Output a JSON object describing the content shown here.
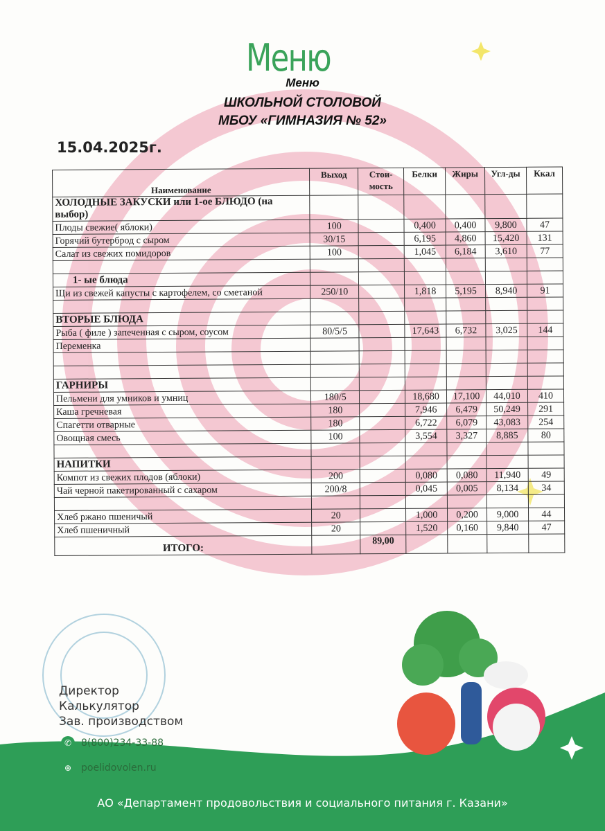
{
  "header": {
    "logo_text": "Меню",
    "title_line1": "Меню",
    "title_line2": "ШКОЛЬНОЙ СТОЛОВОЙ",
    "title_line3": "МБОУ «ГИМНАЗИЯ № 52»",
    "date": "15.04.2025г."
  },
  "table": {
    "columns": [
      "Наименование",
      "Выход",
      "Стои-мость",
      "Белки",
      "Жиры",
      "Угл-ды",
      "Ккал"
    ],
    "rows": [
      {
        "name": "ХОЛОДНЫЕ ЗАКУСКИ или 1-ое БЛЮДО (на выбор)",
        "section": true
      },
      {
        "name": "Плоды свежие( яблоки)",
        "out": "100",
        "cost": "",
        "b": "0,400",
        "f": "0,400",
        "c": "9,800",
        "k": "47"
      },
      {
        "name": "Горячий бутерброд с сыром",
        "out": "30/15",
        "cost": "",
        "b": "6,195",
        "f": "4,860",
        "c": "15,420",
        "k": "131"
      },
      {
        "name": "Салат из свежих помидоров",
        "out": "100",
        "cost": "",
        "b": "1,045",
        "f": "6,184",
        "c": "3,610",
        "k": "77"
      },
      {
        "name": ""
      },
      {
        "name": "1-   ые блюда",
        "section": true
      },
      {
        "name": "Щи из свежей капусты с картофелем,  со сметаной",
        "out": "250/10",
        "cost": "",
        "b": "1,818",
        "f": "5,195",
        "c": "8,940",
        "k": "91"
      },
      {
        "name": ""
      },
      {
        "name": "ВТОРЫЕ БЛЮДА",
        "section": true
      },
      {
        "name": "Рыба ( филе ) запеченная с сыром, соусом",
        "out": "80/5/5",
        "cost": "",
        "b": "17,643",
        "f": "6,732",
        "c": "3,025",
        "k": "144"
      },
      {
        "name": "Переменка"
      },
      {
        "name": ""
      },
      {
        "name": ""
      },
      {
        "name": "ГАРНИРЫ",
        "section": true
      },
      {
        "name": "Пельмени для умников и умниц",
        "out": "180/5",
        "cost": "",
        "b": "18,680",
        "f": "17,100",
        "c": "44,010",
        "k": "410"
      },
      {
        "name": "Каша гречневая",
        "out": "180",
        "cost": "",
        "b": "7,946",
        "f": "6,479",
        "c": "50,249",
        "k": "291"
      },
      {
        "name": "Спагетти отварные",
        "out": "180",
        "cost": "",
        "b": "6,722",
        "f": "6,079",
        "c": "43,083",
        "k": "254"
      },
      {
        "name": "Овощная смесь",
        "out": "100",
        "cost": "",
        "b": "3,554",
        "f": "3,327",
        "c": "8,885",
        "k": "80"
      },
      {
        "name": ""
      },
      {
        "name": "НАПИТКИ",
        "section": true
      },
      {
        "name": "Компот из свежих плодов (яблоки)",
        "out": "200",
        "cost": "",
        "b": "0,080",
        "f": "0,080",
        "c": "11,940",
        "k": "49"
      },
      {
        "name": "Чай черной пакетированный с сахаром",
        "out": "200/8",
        "cost": "",
        "b": "0,045",
        "f": "0,005",
        "c": "8,134",
        "k": "34"
      },
      {
        "name": ""
      },
      {
        "name": "Хлеб ржано пшеничый",
        "out": "20",
        "cost": "",
        "b": "1,000",
        "f": "0,200",
        "c": "9,000",
        "k": "44"
      },
      {
        "name": "Хлеб пшеничный",
        "out": "20",
        "cost": "",
        "b": "1,520",
        "f": "0,160",
        "c": "9,840",
        "k": "47"
      }
    ],
    "total_label": "ИТОГО:",
    "total_cost": "89,00"
  },
  "signatures": [
    "Директор",
    "Калькулятор",
    "Зав. производством"
  ],
  "contacts": {
    "phone": "8(800)234-33-88",
    "website": "poelidovolen.ru"
  },
  "footer": "АО «Департамент продовольствия и социального питания г. Казани»",
  "colors": {
    "spiral": "#f2b8c6",
    "green": "#2e9e57",
    "logo_green": "#3aa35a",
    "accent_yellow": "#f3e66a"
  }
}
